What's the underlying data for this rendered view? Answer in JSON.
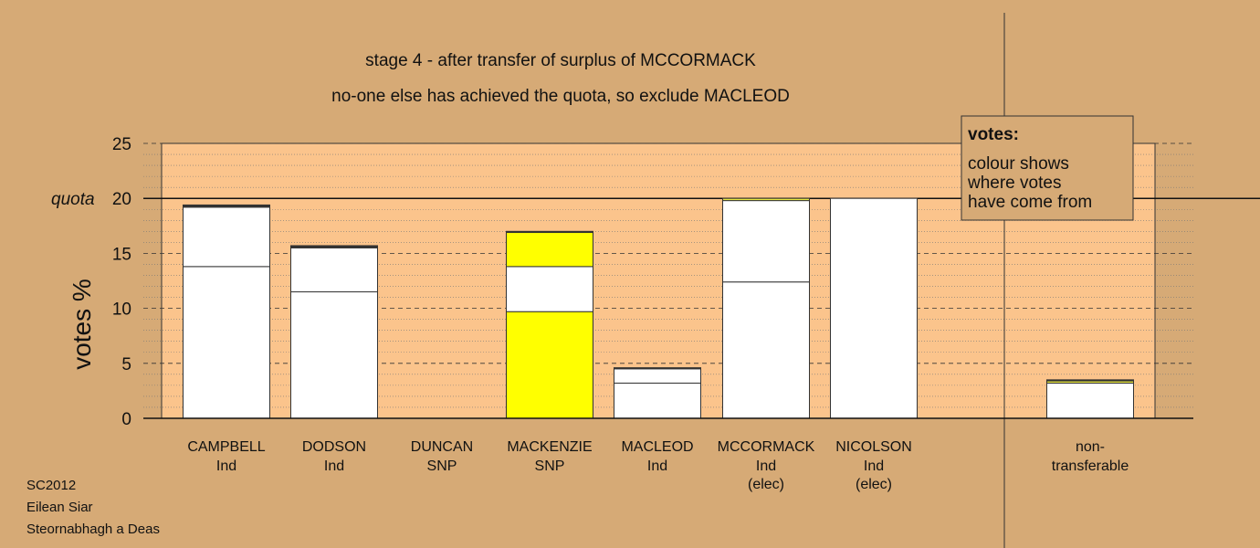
{
  "chart_data": {
    "type": "bar",
    "stacked": true,
    "title": "stage 4 - after transfer of surplus of MCCORMACK",
    "subtitle": "no-one else has achieved the quota, so exclude MACLEOD",
    "ylabel": "votes %",
    "ylim": [
      0,
      25
    ],
    "yticks": [
      0,
      5,
      10,
      15,
      20,
      25
    ],
    "quota": {
      "label": "quota",
      "value": 20
    },
    "grid": "dotted minor, dashed major",
    "candidates": [
      {
        "name": "CAMPBELL",
        "party": "Ind",
        "status": "",
        "segments": [
          {
            "value": 13.8,
            "color": "#ffffff"
          },
          {
            "value": 5.4,
            "color": "#ffffff"
          },
          {
            "value": 0.2,
            "color": "#333333"
          }
        ]
      },
      {
        "name": "DODSON",
        "party": "Ind",
        "status": "",
        "segments": [
          {
            "value": 11.5,
            "color": "#ffffff"
          },
          {
            "value": 4.0,
            "color": "#ffffff"
          },
          {
            "value": 0.2,
            "color": "#333333"
          }
        ]
      },
      {
        "name": "DUNCAN",
        "party": "SNP",
        "status": "",
        "segments": []
      },
      {
        "name": "MACKENZIE",
        "party": "SNP",
        "status": "",
        "segments": [
          {
            "value": 9.7,
            "color": "#ffff00"
          },
          {
            "value": 4.1,
            "color": "#ffffff"
          },
          {
            "value": 3.1,
            "color": "#ffff00"
          },
          {
            "value": 0.1,
            "color": "#333333"
          }
        ]
      },
      {
        "name": "MACLEOD",
        "party": "Ind",
        "status": "",
        "segments": [
          {
            "value": 3.2,
            "color": "#ffffff"
          },
          {
            "value": 1.3,
            "color": "#ffffff"
          },
          {
            "value": 0.1,
            "color": "#333333"
          }
        ]
      },
      {
        "name": "MCCORMACK",
        "party": "Ind",
        "status": "(elec)",
        "segments": [
          {
            "value": 12.4,
            "color": "#ffffff"
          },
          {
            "value": 7.4,
            "color": "#ffffff"
          },
          {
            "value": 0.2,
            "color": "#e8e840"
          }
        ]
      },
      {
        "name": "NICOLSON",
        "party": "Ind",
        "status": "(elec)",
        "segments": [
          {
            "value": 20.0,
            "color": "#ffffff"
          }
        ]
      }
    ],
    "nontransferable": {
      "label1": "non-",
      "label2": "transferable",
      "segments": [
        {
          "value": 3.2,
          "color": "#ffffff"
        },
        {
          "value": 0.2,
          "color": "#e8e840"
        },
        {
          "value": 0.1,
          "color": "#333333"
        }
      ]
    },
    "legend": {
      "heading": "votes:",
      "lines": [
        "colour shows",
        "where votes",
        "have come from"
      ]
    }
  },
  "footer": {
    "line1": "SC2012",
    "line2": "Eilean Siar",
    "line3": "Steornabhagh a Deas"
  },
  "colors": {
    "background": "#d6aa76",
    "plot_fill": "#fbc48c",
    "legend_fill": "#d6aa76"
  }
}
